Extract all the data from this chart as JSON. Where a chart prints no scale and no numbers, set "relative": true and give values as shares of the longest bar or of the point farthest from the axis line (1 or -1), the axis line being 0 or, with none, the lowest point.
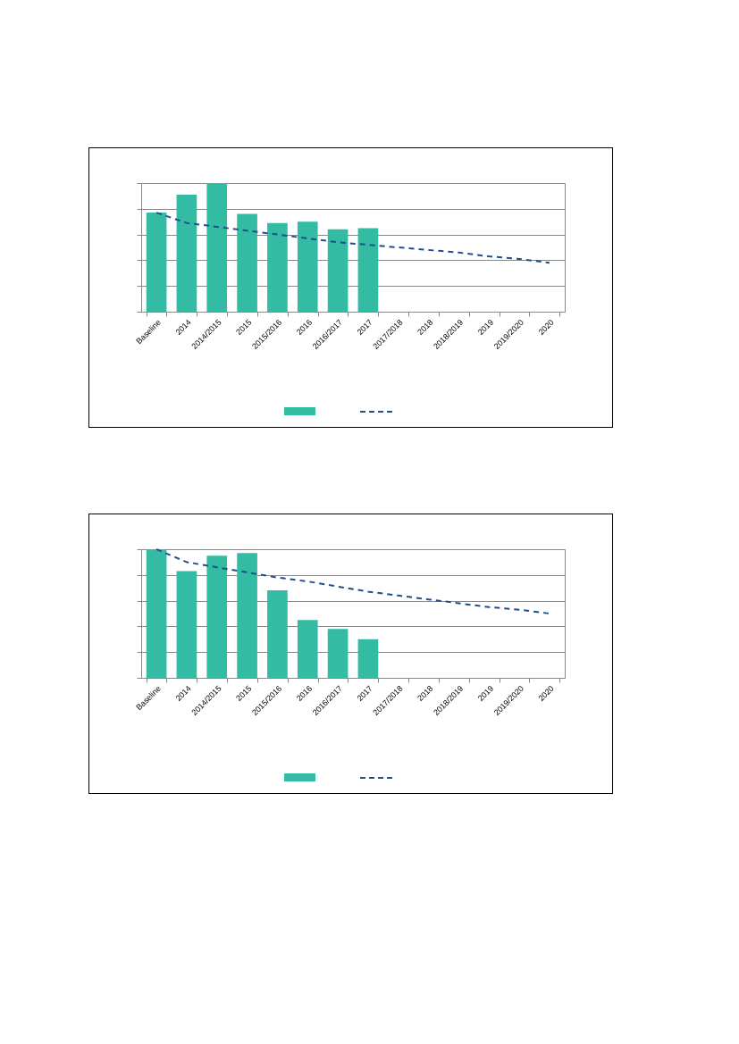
{
  "chart_data": [
    {
      "type": "bar",
      "relative": true,
      "grid": "y",
      "categories": [
        "Baseline",
        "2014",
        "2014/2015",
        "2015",
        "2015/2016",
        "2016",
        "2016/2017",
        "2017",
        "2017/2018",
        "2018",
        "2018/2019",
        "2019",
        "2019/2020",
        "2020"
      ],
      "series": [
        {
          "color": "#33bba3",
          "values": [
            0.77,
            0.91,
            1,
            0.76,
            0.69,
            0.7,
            0.64,
            0.65,
            null,
            null,
            null,
            null,
            null,
            null
          ]
        },
        {
          "type": "line",
          "color": "#1f4e8c",
          "line_style": "dashed",
          "values": [
            0.77,
            0.69,
            0.66,
            0.63,
            0.6,
            0.57,
            0.54,
            0.52,
            0.5,
            0.48,
            0.46,
            0.43,
            0.41,
            0.38
          ]
        }
      ]
    },
    {
      "type": "bar",
      "relative": true,
      "grid": "y",
      "categories": [
        "Baseline",
        "2014",
        "2014/2015",
        "2015",
        "2015/2016",
        "2016",
        "2016/2017",
        "2017",
        "2017/2018",
        "2018",
        "2018/2019",
        "2019",
        "2019/2020",
        "2020"
      ],
      "series": [
        {
          "color": "#33bba3",
          "values": [
            1,
            0.83,
            0.95,
            0.97,
            0.68,
            0.45,
            0.38,
            0.3,
            null,
            null,
            null,
            null,
            null,
            null
          ]
        },
        {
          "type": "line",
          "color": "#1f4e8c",
          "line_style": "dashed",
          "values": [
            1,
            0.9,
            0.86,
            0.82,
            0.78,
            0.75,
            0.71,
            0.67,
            0.64,
            0.61,
            0.58,
            0.55,
            0.53,
            0.5
          ]
        }
      ]
    }
  ]
}
